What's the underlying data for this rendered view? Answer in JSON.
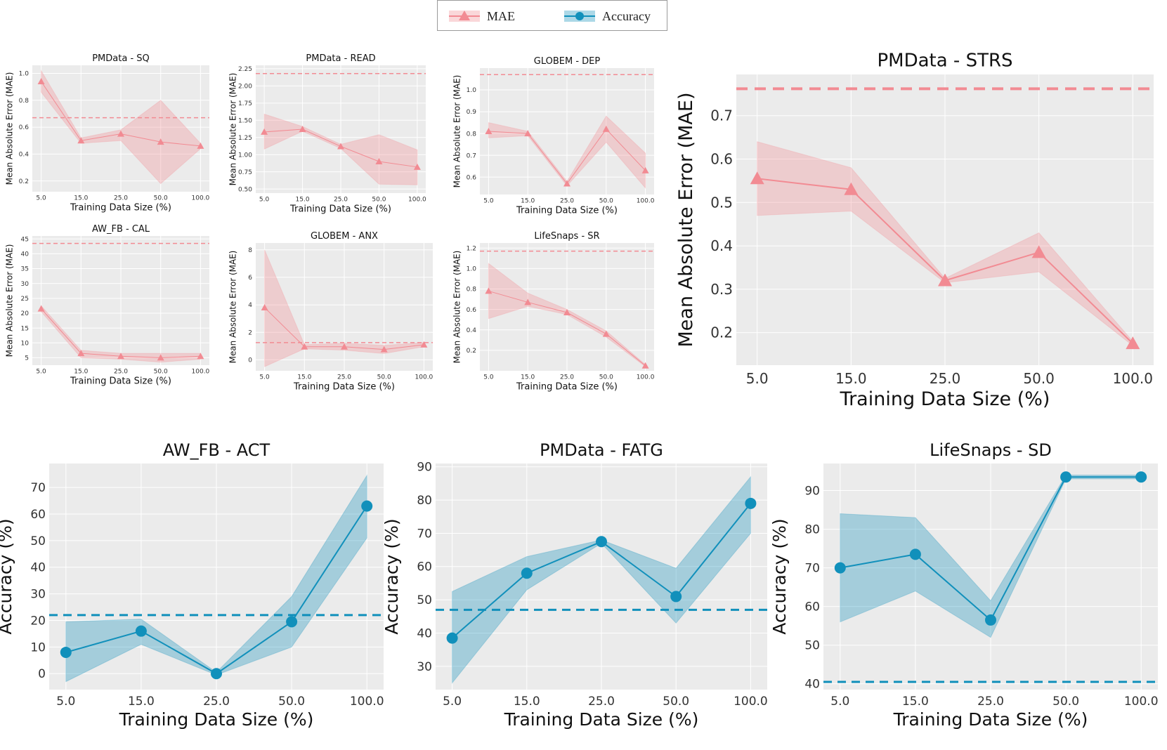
{
  "legend": {
    "mae_label": "MAE",
    "acc_label": "Accuracy",
    "mae_color": "#f28b93",
    "acc_color": "#1190bb"
  },
  "x_ticks": [
    "5.0",
    "15.0",
    "25.0",
    "50.0",
    "100.0"
  ],
  "chart_data": [
    {
      "id": "sq",
      "type": "line",
      "metric": "mae",
      "title": "PMData - SQ",
      "xlabel": "Training Data Size (%)",
      "ylabel": "Mean Absolute Error (MAE)",
      "categories": [
        "5.0",
        "15.0",
        "25.0",
        "50.0",
        "100.0"
      ],
      "values": [
        0.94,
        0.5,
        0.55,
        0.49,
        0.46
      ],
      "lower": [
        0.86,
        0.48,
        0.5,
        0.18,
        0.44
      ],
      "upper": [
        1.02,
        0.52,
        0.58,
        0.8,
        0.48
      ],
      "baseline": 0.67,
      "ylim": [
        0.12,
        1.06
      ],
      "yticks": [
        0.2,
        0.4,
        0.6,
        0.8,
        1.0
      ],
      "ytick_labels": [
        "0.2",
        "0.4",
        "0.6",
        "0.8",
        "1.0"
      ]
    },
    {
      "id": "read",
      "type": "line",
      "metric": "mae",
      "title": "PMData - READ",
      "xlabel": "Training Data Size (%)",
      "ylabel": "Mean Absolute Error (MAE)",
      "categories": [
        "5.0",
        "15.0",
        "25.0",
        "50.0",
        "100.0"
      ],
      "values": [
        1.33,
        1.37,
        1.12,
        0.9,
        0.82
      ],
      "lower": [
        1.08,
        1.34,
        1.09,
        0.57,
        0.56
      ],
      "upper": [
        1.59,
        1.41,
        1.15,
        1.29,
        1.07
      ],
      "baseline": 2.18,
      "ylim": [
        0.44,
        2.3
      ],
      "yticks": [
        0.5,
        0.75,
        1.0,
        1.25,
        1.5,
        1.75,
        2.0,
        2.25
      ],
      "ytick_labels": [
        "0.50",
        "0.75",
        "1.00",
        "1.25",
        "1.50",
        "1.75",
        "2.00",
        "2.25"
      ]
    },
    {
      "id": "dep",
      "type": "line",
      "metric": "mae",
      "title": "GLOBEM - DEP",
      "xlabel": "Training Data Size (%)",
      "ylabel": "Mean Absolute Error (MAE)",
      "categories": [
        "5.0",
        "15.0",
        "25.0",
        "50.0",
        "100.0"
      ],
      "values": [
        0.81,
        0.8,
        0.57,
        0.82,
        0.63
      ],
      "lower": [
        0.78,
        0.79,
        0.56,
        0.76,
        0.55
      ],
      "upper": [
        0.85,
        0.81,
        0.58,
        0.88,
        0.71
      ],
      "baseline": 1.07,
      "ylim": [
        0.52,
        1.1
      ],
      "yticks": [
        0.6,
        0.7,
        0.8,
        0.9,
        1.0
      ],
      "ytick_labels": [
        "0.6",
        "0.7",
        "0.8",
        "0.9",
        "1.0"
      ]
    },
    {
      "id": "cal",
      "type": "line",
      "metric": "mae",
      "title": "AW_FB - CAL",
      "xlabel": "Training Data Size (%)",
      "ylabel": "Mean Absolute Error (MAE)",
      "categories": [
        "5.0",
        "15.0",
        "25.0",
        "50.0",
        "100.0"
      ],
      "values": [
        21.5,
        6.5,
        5.5,
        5.0,
        5.5
      ],
      "lower": [
        20.5,
        5.0,
        4.5,
        3.5,
        4.5
      ],
      "upper": [
        22.5,
        7.5,
        6.5,
        6.5,
        6.5
      ],
      "baseline": 43.5,
      "ylim": [
        2.5,
        46.0
      ],
      "yticks": [
        5,
        10,
        15,
        20,
        25,
        30,
        35,
        40,
        45
      ],
      "ytick_labels": [
        "5",
        "10",
        "15",
        "20",
        "25",
        "30",
        "35",
        "40",
        "45"
      ]
    },
    {
      "id": "anx",
      "type": "line",
      "metric": "mae",
      "title": "GLOBEM - ANX",
      "xlabel": "Training Data Size (%)",
      "ylabel": "Mean Absolute Error (MAE)",
      "categories": [
        "5.0",
        "15.0",
        "25.0",
        "50.0",
        "100.0"
      ],
      "values": [
        3.8,
        0.95,
        0.95,
        0.75,
        1.1
      ],
      "lower": [
        -0.5,
        0.8,
        0.7,
        0.45,
        0.95
      ],
      "upper": [
        8.0,
        1.1,
        1.2,
        1.05,
        1.25
      ],
      "baseline": 1.25,
      "ylim": [
        -0.8,
        8.5
      ],
      "yticks": [
        0,
        2,
        4,
        6,
        8
      ],
      "ytick_labels": [
        "0",
        "2",
        "4",
        "6",
        "8"
      ]
    },
    {
      "id": "sr",
      "type": "line",
      "metric": "mae",
      "title": "LifeSnaps - SR",
      "xlabel": "Training Data Size (%)",
      "ylabel": "Mean Absolute Error (MAE)",
      "categories": [
        "5.0",
        "15.0",
        "25.0",
        "50.0",
        "100.0"
      ],
      "values": [
        0.78,
        0.67,
        0.57,
        0.36,
        0.05
      ],
      "lower": [
        0.51,
        0.63,
        0.55,
        0.33,
        0.04
      ],
      "upper": [
        1.05,
        0.76,
        0.6,
        0.39,
        0.06
      ],
      "baseline": 1.17,
      "ylim": [
        0.0,
        1.25
      ],
      "yticks": [
        0.2,
        0.4,
        0.6,
        0.8,
        1.0,
        1.2
      ],
      "ytick_labels": [
        "0.2",
        "0.4",
        "0.6",
        "0.8",
        "1.0",
        "1.2"
      ]
    },
    {
      "id": "strs",
      "type": "line",
      "metric": "mae",
      "title": "PMData - STRS",
      "xlabel": "Training Data Size (%)",
      "ylabel": "Mean Absolute Error (MAE)",
      "categories": [
        "5.0",
        "15.0",
        "25.0",
        "50.0",
        "100.0"
      ],
      "values": [
        0.555,
        0.53,
        0.32,
        0.385,
        0.175
      ],
      "lower": [
        0.47,
        0.48,
        0.315,
        0.34,
        0.17
      ],
      "upper": [
        0.64,
        0.58,
        0.325,
        0.43,
        0.18
      ],
      "baseline": 0.762,
      "ylim": [
        0.125,
        0.795
      ],
      "yticks": [
        0.2,
        0.3,
        0.4,
        0.5,
        0.6,
        0.7
      ],
      "ytick_labels": [
        "0.2",
        "0.3",
        "0.4",
        "0.5",
        "0.6",
        "0.7"
      ]
    },
    {
      "id": "act",
      "type": "line",
      "metric": "acc",
      "title": "AW_FB - ACT",
      "xlabel": "Training Data Size (%)",
      "ylabel": "Accuracy (%)",
      "categories": [
        "5.0",
        "15.0",
        "25.0",
        "50.0",
        "100.0"
      ],
      "values": [
        8,
        16,
        0,
        19.5,
        63
      ],
      "lower": [
        -3,
        11,
        -0.5,
        10,
        51
      ],
      "upper": [
        19.5,
        20.5,
        0.5,
        29,
        74.5
      ],
      "baseline": 22,
      "ylim": [
        -6,
        79
      ],
      "yticks": [
        0,
        10,
        20,
        30,
        40,
        50,
        60,
        70
      ],
      "ytick_labels": [
        "0",
        "10",
        "20",
        "30",
        "40",
        "50",
        "60",
        "70"
      ]
    },
    {
      "id": "fatg",
      "type": "line",
      "metric": "acc",
      "title": "PMData - FATG",
      "xlabel": "Training Data Size (%)",
      "ylabel": "Accuracy (%)",
      "categories": [
        "5.0",
        "15.0",
        "25.0",
        "50.0",
        "100.0"
      ],
      "values": [
        38.5,
        58,
        67.5,
        51,
        79
      ],
      "lower": [
        25,
        53,
        67,
        43,
        70
      ],
      "upper": [
        52.5,
        63,
        68,
        59.5,
        87
      ],
      "baseline": 47,
      "ylim": [
        23,
        91
      ],
      "yticks": [
        30,
        40,
        50,
        60,
        70,
        80,
        90
      ],
      "ytick_labels": [
        "30",
        "40",
        "50",
        "60",
        "70",
        "80",
        "90"
      ]
    },
    {
      "id": "sd",
      "type": "line",
      "metric": "acc",
      "title": "LifeSnaps - SD",
      "xlabel": "Training Data Size (%)",
      "ylabel": "Accuracy (%)",
      "categories": [
        "5.0",
        "15.0",
        "25.0",
        "50.0",
        "100.0"
      ],
      "values": [
        70,
        73.5,
        56.5,
        93.5,
        93.5
      ],
      "lower": [
        56,
        64,
        52,
        93,
        93
      ],
      "upper": [
        84,
        83,
        61.5,
        94,
        94
      ],
      "baseline": 40.5,
      "ylim": [
        38.5,
        97
      ],
      "yticks": [
        40,
        50,
        60,
        70,
        80,
        90
      ],
      "ytick_labels": [
        "40",
        "50",
        "60",
        "70",
        "80",
        "90"
      ]
    }
  ]
}
